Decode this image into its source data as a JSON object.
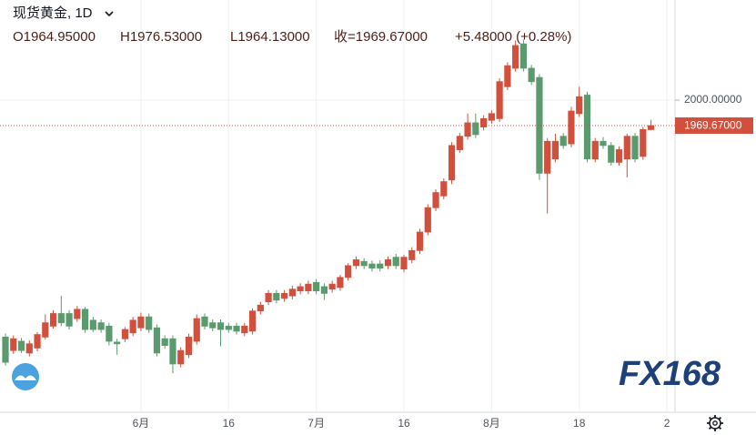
{
  "chart_data": {
    "type": "candlestick",
    "title": "现货黄金, 1D",
    "ohlc_header": [
      "O1964.95000",
      "H1976.53000",
      "L1964.13000",
      "收=1969.67000",
      "+5.48000 (+0.28%)"
    ],
    "watermark": "FX168",
    "up_color": "#d1503d",
    "down_color": "#5b9a6e",
    "grid": true,
    "ylim": [
      1628.5,
      2119.2
    ],
    "yticks": [
      {
        "value": 2000,
        "label": "2000.00000"
      }
    ],
    "last_price": {
      "value": 1969.67,
      "label": "1969.67000"
    },
    "categories": [
      null,
      null,
      null,
      null,
      null,
      null,
      null,
      null,
      null,
      null,
      null,
      null,
      null,
      null,
      null,
      null,
      null,
      "6月",
      null,
      null,
      null,
      null,
      null,
      null,
      null,
      null,
      null,
      null,
      "16",
      null,
      null,
      null,
      null,
      null,
      null,
      null,
      null,
      null,
      null,
      "7月",
      null,
      null,
      null,
      null,
      null,
      null,
      null,
      null,
      null,
      null,
      "16",
      null,
      null,
      null,
      null,
      null,
      null,
      null,
      null,
      null,
      null,
      "8月",
      null,
      null,
      null,
      null,
      null,
      null,
      null,
      null,
      null,
      null,
      "18",
      null,
      null,
      null,
      null,
      null,
      null,
      null,
      null,
      null,
      null,
      "2"
    ],
    "open": [
      1718,
      1702,
      1713,
      1699,
      1705,
      1718,
      1731,
      1746,
      1746,
      1740,
      1751,
      1738,
      1735,
      1731,
      1712,
      1716,
      1723,
      1729,
      1742,
      1729,
      1716,
      1716,
      1686,
      1697,
      1713,
      1742,
      1735,
      1735,
      1731,
      1731,
      1723,
      1725,
      1749,
      1760,
      1770,
      1764,
      1767,
      1773,
      1773,
      1783,
      1778,
      1775,
      1777,
      1789,
      1803,
      1808,
      1805,
      1805,
      1803,
      1813,
      1799,
      1810,
      1821,
      1843,
      1872,
      1886,
      1905,
      1941,
      1957,
      1973,
      1968,
      1976,
      1978,
      2016,
      2038,
      2067,
      2038,
      2027,
      1913,
      1930,
      1957,
      1948,
      1984,
      2006,
      1930,
      1951,
      1946,
      1926,
      1930,
      1957,
      1933,
      1964.95,
      null,
      null
    ],
    "high": [
      1722,
      1720,
      1717,
      1714,
      1724,
      1745,
      1750,
      1767,
      1750,
      1755,
      1754,
      1742,
      1739,
      1735,
      1716,
      1730,
      1742,
      1747,
      1746,
      1733,
      1720,
      1720,
      1706,
      1722,
      1745,
      1746,
      1739,
      1739,
      1735,
      1735,
      1735,
      1752,
      1760,
      1774,
      1774,
      1774,
      1779,
      1782,
      1785,
      1787,
      1782,
      1785,
      1792,
      1806,
      1814,
      1812,
      1809,
      1809,
      1814,
      1817,
      1816,
      1825,
      1847,
      1876,
      1894,
      1907,
      1950,
      1961,
      1984,
      1984,
      1982,
      1988,
      2026,
      2045,
      2071,
      2072,
      2042,
      2031,
      1955,
      1960,
      1961,
      1992,
      2016,
      2010,
      1955,
      1956,
      1950,
      1945,
      1960,
      1961,
      1968,
      1976.53,
      null,
      null
    ],
    "low": [
      1684,
      1698,
      1699,
      1695,
      1701,
      1715,
      1728,
      1731,
      1727,
      1736,
      1723,
      1724,
      1723,
      1708,
      1697,
      1712,
      1719,
      1725,
      1723,
      1695,
      1704,
      1675,
      1682,
      1693,
      1709,
      1727,
      1725,
      1707,
      1723,
      1721,
      1719,
      1721,
      1745,
      1756,
      1758,
      1760,
      1763,
      1769,
      1769,
      1769,
      1762,
      1771,
      1773,
      1785,
      1799,
      1799,
      1796,
      1796,
      1799,
      1799,
      1795,
      1806,
      1817,
      1839,
      1868,
      1882,
      1900,
      1937,
      1953,
      1955,
      1964,
      1972,
      1974,
      2012,
      2034,
      2034,
      2018,
      1905,
      1865,
      1926,
      1942,
      1944,
      1980,
      1926,
      1926,
      1942,
      1922,
      1922,
      1908,
      1926,
      1929,
      1964.13,
      null,
      null
    ],
    "close": [
      1688,
      1716,
      1702,
      1710,
      1721,
      1735,
      1746,
      1735,
      1731,
      1751,
      1727,
      1727,
      1727,
      1713,
      1710,
      1727,
      1738,
      1742,
      1727,
      1699,
      1708,
      1686,
      1702,
      1718,
      1740,
      1731,
      1729,
      1727,
      1727,
      1725,
      1731,
      1749,
      1756,
      1770,
      1762,
      1770,
      1775,
      1778,
      1781,
      1773,
      1770,
      1781,
      1789,
      1803,
      1810,
      1803,
      1800,
      1800,
      1810,
      1803,
      1813,
      1821,
      1843,
      1872,
      1890,
      1903,
      1946,
      1957,
      1973,
      1959,
      1978,
      1984,
      2022,
      2041,
      2065,
      2038,
      2022,
      1913,
      1951,
      1951,
      1946,
      1987,
      2004,
      1930,
      1951,
      1946,
      1926,
      1941,
      1957,
      1930,
      1965,
      1969.67,
      null,
      null
    ]
  }
}
